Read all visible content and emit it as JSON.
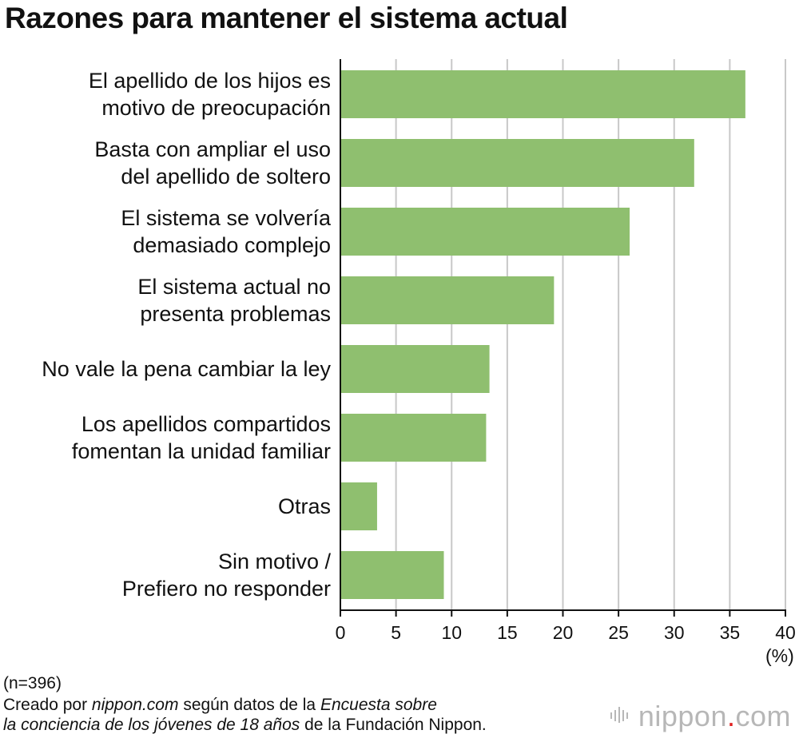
{
  "chart_data": {
    "type": "bar",
    "orientation": "horizontal",
    "title": "Razones para mantener el sistema actual",
    "categories": [
      [
        "El apellido de los hijos es",
        "motivo de preocupación"
      ],
      [
        "Basta con ampliar el uso",
        "del apellido de soltero"
      ],
      [
        "El sistema se volvería",
        "demasiado complejo"
      ],
      [
        "El sistema actual no",
        "presenta problemas"
      ],
      [
        "No vale la pena cambiar la ley"
      ],
      [
        "Los apellidos compartidos",
        "fomentan la unidad familiar"
      ],
      [
        "Otras"
      ],
      [
        "Sin motivo /",
        "Prefiero no responder"
      ]
    ],
    "values": [
      36.4,
      31.8,
      26.0,
      19.2,
      13.4,
      13.1,
      3.3,
      9.3
    ],
    "xlim": [
      0,
      40
    ],
    "xticks": [
      0,
      5,
      10,
      15,
      20,
      25,
      30,
      35,
      40
    ],
    "xlabel": "(%)",
    "grid": true,
    "bar_color": "#8fbf6f",
    "grid_color": "#c8c8c8",
    "axis_color": "#111111"
  },
  "footer": {
    "note": "(n=396)",
    "source_parts": [
      {
        "text": "Creado por ",
        "italic": false
      },
      {
        "text": "nippon.com",
        "italic": true
      },
      {
        "text": " según datos de la ",
        "italic": false
      },
      {
        "text": "Encuesta sobre",
        "italic": true
      },
      {
        "text": "\n",
        "italic": false
      },
      {
        "text": "la conciencia de los jóvenes de 18 años",
        "italic": true
      },
      {
        "text": " de la Fundación Nippon.",
        "italic": false
      }
    ]
  },
  "brand": {
    "name": "nippon",
    "dot": ".",
    "suffix": "com"
  }
}
